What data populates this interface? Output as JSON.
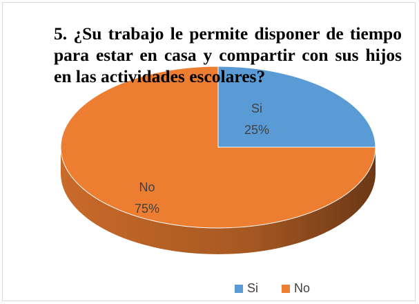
{
  "chart_data": {
    "type": "pie",
    "three_d": true,
    "title": "5. ¿Su trabajo le permite disponer de tiempo para estar en casa y compartir con sus hijos en las actividades escolares?",
    "categories": [
      "Si",
      "No"
    ],
    "values": [
      25,
      75
    ],
    "value_labels": [
      "25%",
      "75%"
    ],
    "colors": [
      "#5b9bd5",
      "#ed7d31"
    ],
    "legend": "bottom"
  }
}
